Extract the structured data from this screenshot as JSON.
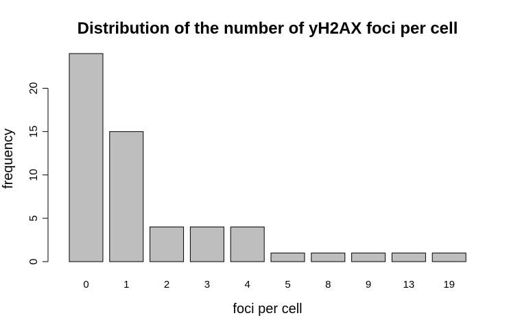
{
  "chart_data": {
    "type": "bar",
    "title": "Distribution of the number of yH2AX foci per cell",
    "xlabel": "foci per cell",
    "ylabel": "frequency",
    "categories": [
      "0",
      "1",
      "2",
      "3",
      "4",
      "5",
      "8",
      "9",
      "13",
      "19"
    ],
    "values": [
      24,
      15,
      4,
      4,
      4,
      1,
      1,
      1,
      1,
      1
    ],
    "y_ticks": [
      "0",
      "5",
      "10",
      "15",
      "20"
    ],
    "ylim": [
      0,
      24
    ],
    "grid": false,
    "legend": "none",
    "bar_color": "#bebebe",
    "bar_edge_color": "#000000"
  }
}
